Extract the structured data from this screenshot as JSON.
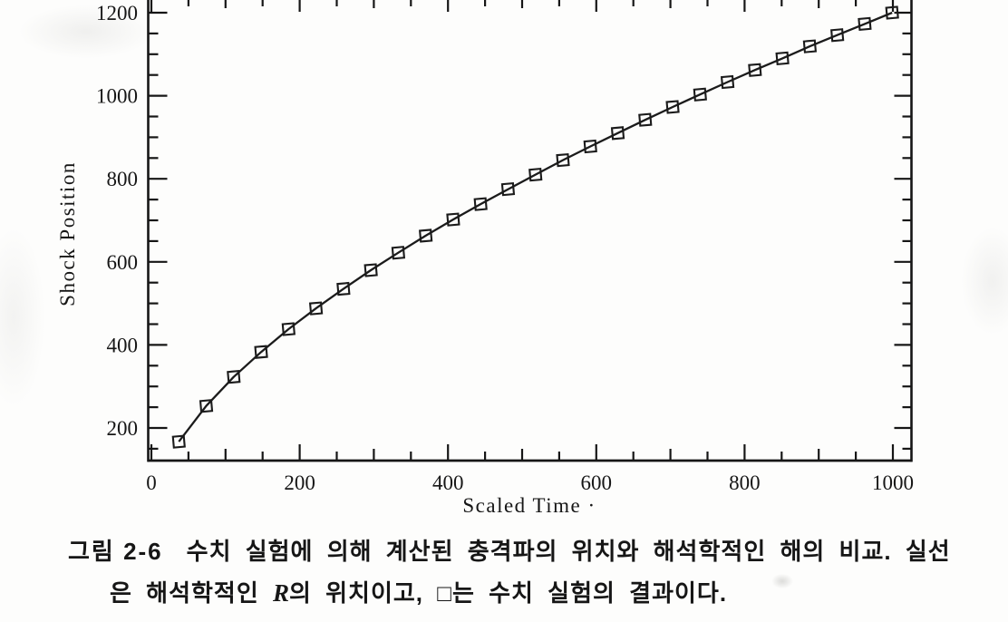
{
  "figure": {
    "caption": {
      "label": "그림 2-6",
      "line1": "수치 실험에 의해 계산된 충격파의 위치와 해석학적인 해의 비교. 실선",
      "line2_before_r": "은 해석학적인 ",
      "line2_r": "R",
      "line2_after_r": "의 위치이고, □는 수치 실험의 결과이다."
    }
  },
  "chart_data": {
    "type": "scatter",
    "title": "",
    "xlabel": "Scaled Time ·",
    "ylabel": "Shock Position",
    "xlim": [
      -5,
      1025
    ],
    "ylim": [
      120,
      1260
    ],
    "grid": false,
    "legend_position": "none (explained in caption: solid line = analytic R, open squares = numerical experiment)",
    "x_major_ticks": [
      0,
      200,
      400,
      600,
      800,
      1000
    ],
    "x_tick_labels": [
      "0",
      "200",
      "400",
      "600",
      "800",
      "1000"
    ],
    "x_minor_tick_step": 50,
    "y_major_ticks": [
      200,
      400,
      600,
      800,
      1000,
      1200
    ],
    "y_tick_labels": [
      "200",
      "400",
      "600",
      "800",
      "1000",
      "1200"
    ],
    "y_minor_tick_step": 50,
    "series": [
      {
        "name": "shock position (solid line: analytic solution R; □: numerical experiment)",
        "marker": "open-square",
        "line_style": "solid",
        "color": "#1b1b1b",
        "x": [
          37,
          74,
          111,
          148,
          185,
          222,
          259,
          296,
          333,
          370,
          407,
          444,
          481,
          518,
          555,
          592,
          629,
          666,
          703,
          740,
          777,
          814,
          851,
          888,
          925,
          962,
          999
        ],
        "y": [
          167,
          253,
          323,
          383,
          438,
          488,
          535,
          580,
          622,
          663,
          702,
          739,
          775,
          810,
          845,
          878,
          910,
          942,
          973,
          1003,
          1033,
          1062,
          1090,
          1119,
          1146,
          1173,
          1200
        ]
      }
    ]
  }
}
